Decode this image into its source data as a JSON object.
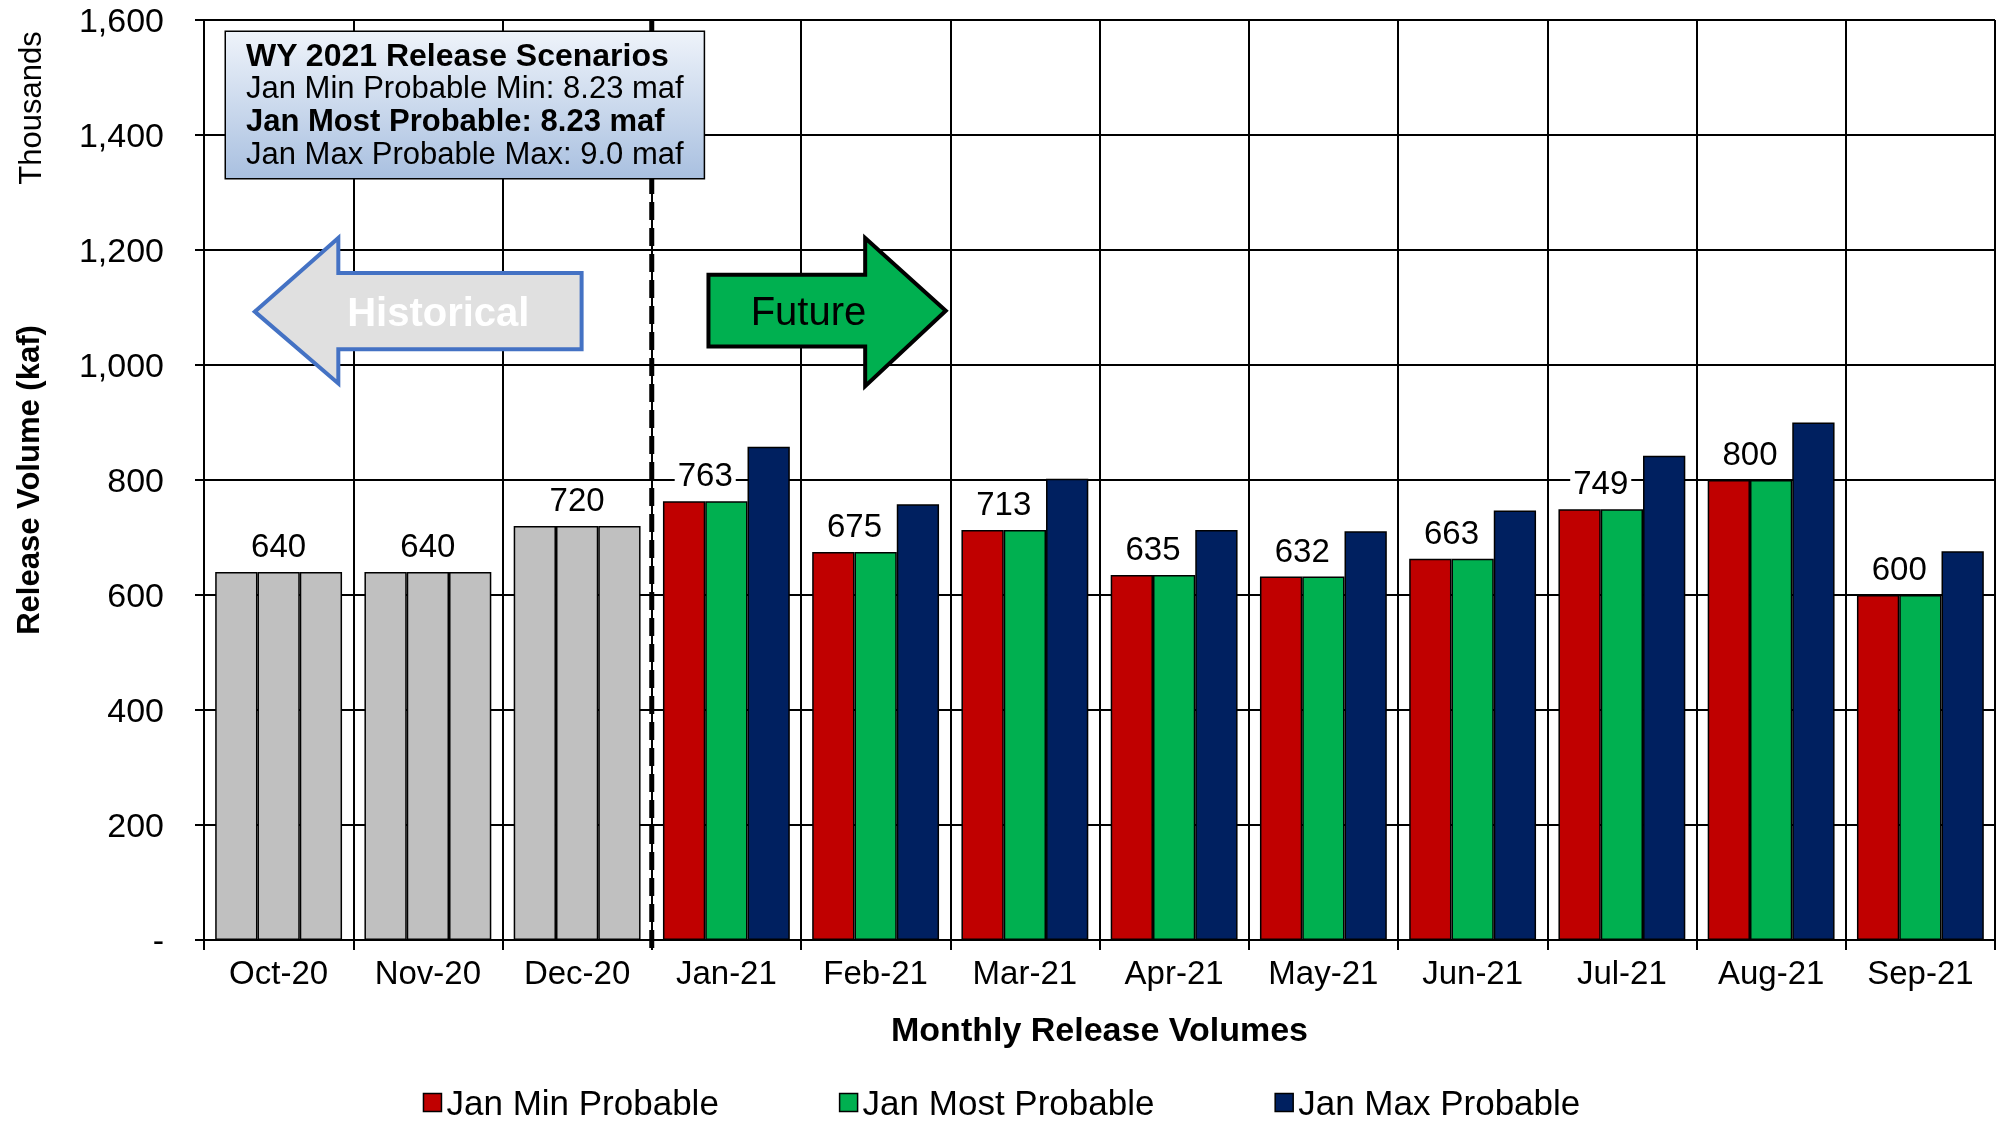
{
  "chart_data": {
    "type": "bar",
    "xlabel": "Monthly Release Volumes",
    "ylabel": "Release Volume (kaf)",
    "categories": [
      "Oct-20",
      "Nov-20",
      "Dec-20",
      "Jan-21",
      "Feb-21",
      "Mar-21",
      "Apr-21",
      "May-21",
      "Jun-21",
      "Jul-21",
      "Aug-21",
      "Sep-21"
    ],
    "series": [
      {
        "name": "Jan Min Probable",
        "color": "#c00000",
        "colors": [
          "#c0c0c0",
          "#c0c0c0",
          "#c0c0c0",
          "#c00000",
          "#c00000",
          "#c00000",
          "#c00000",
          "#c00000",
          "#c00000",
          "#c00000",
          "#c00000",
          "#c00000"
        ],
        "values": [
          640,
          640,
          720,
          763,
          675,
          713,
          635,
          632,
          663,
          749,
          800,
          600
        ]
      },
      {
        "name": "Jan Most Probable",
        "color": "#00b050",
        "colors": [
          "#c0c0c0",
          "#c0c0c0",
          "#c0c0c0",
          "#00b050",
          "#00b050",
          "#00b050",
          "#00b050",
          "#00b050",
          "#00b050",
          "#00b050",
          "#00b050",
          "#00b050"
        ],
        "values": [
          640,
          640,
          720,
          763,
          675,
          713,
          635,
          632,
          663,
          749,
          800,
          600
        ],
        "value_labels": [
          "640",
          "640",
          "720",
          "763",
          "675",
          "713",
          "635",
          "632",
          "663",
          "749",
          "800",
          "600"
        ]
      },
      {
        "name": "Jan Max Probable",
        "color": "#002060",
        "colors": [
          "#c0c0c0",
          "#c0c0c0",
          "#c0c0c0",
          "#002060",
          "#002060",
          "#002060",
          "#002060",
          "#002060",
          "#002060",
          "#002060",
          "#002060",
          "#002060"
        ],
        "values": [
          640,
          640,
          720,
          858,
          758,
          802,
          713,
          711,
          747,
          842,
          900,
          676
        ]
      }
    ],
    "ylim": [
      0,
      1600
    ],
    "yticks": [
      {
        "value": 0,
        "label": "-"
      },
      200,
      400,
      600,
      800,
      {
        "value": 1000,
        "label": "1,000"
      },
      {
        "value": 1200,
        "label": "1,200"
      },
      {
        "value": 1400,
        "label": "1,400"
      },
      {
        "value": 1600,
        "label": "1,600"
      }
    ],
    "grid": true,
    "legend": "bottom",
    "ref_lines": [
      {
        "axis": "x",
        "value": "Jan-21",
        "color": "#000000",
        "line_style": "dashed"
      }
    ],
    "annotations": [
      "Thousands",
      "WY 2021 Release Scenarios",
      "Jan Min Probable Min: 8.23 maf",
      "Jan Most Probable: 8.23 maf",
      "Jan Max Probable Max: 9.0 maf",
      "Historical",
      "Future"
    ]
  }
}
